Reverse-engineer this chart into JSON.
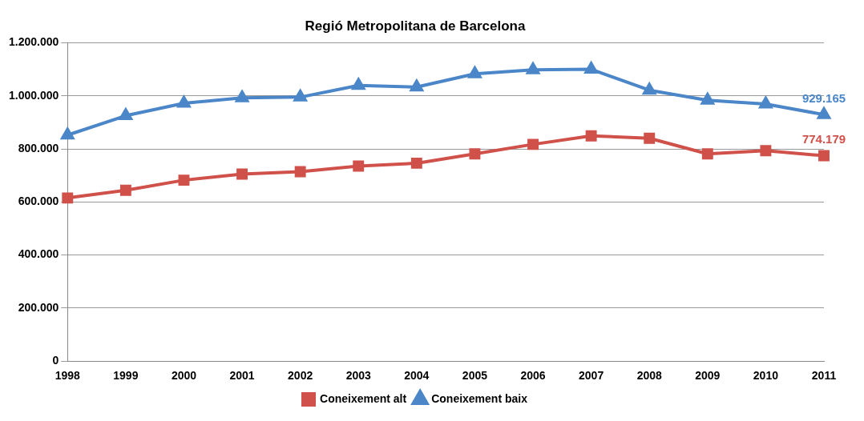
{
  "chart_data": {
    "type": "line",
    "title": "Regió Metropolitana de Barcelona",
    "categories": [
      "1998",
      "1999",
      "2000",
      "2001",
      "2002",
      "2003",
      "2004",
      "2005",
      "2006",
      "2007",
      "2008",
      "2009",
      "2010",
      "2011"
    ],
    "series": [
      {
        "name": "Coneixement alt",
        "color": "#d0504a",
        "marker": "square",
        "values": [
          615000,
          644000,
          682000,
          705000,
          714000,
          735000,
          746000,
          781000,
          817000,
          849000,
          840000,
          781000,
          793000,
          774179
        ],
        "value_labels": [
          null,
          null,
          null,
          null,
          null,
          null,
          null,
          null,
          null,
          null,
          null,
          null,
          null,
          "774.179"
        ]
      },
      {
        "name": "Coneixement baix",
        "color": "#4a86c8",
        "marker": "triangle",
        "values": [
          852000,
          925000,
          972000,
          992000,
          995000,
          1039000,
          1033000,
          1083000,
          1098000,
          1100000,
          1021000,
          983000,
          969000,
          929165
        ],
        "value_labels": [
          null,
          null,
          null,
          null,
          null,
          null,
          null,
          null,
          null,
          null,
          null,
          null,
          null,
          "929.165"
        ]
      }
    ],
    "ylim": [
      0,
      1200000
    ],
    "yticks": [
      {
        "value": 0,
        "label": "0"
      },
      {
        "value": 200000,
        "label": "200.000"
      },
      {
        "value": 400000,
        "label": "400.000"
      },
      {
        "value": 600000,
        "label": "600.000"
      },
      {
        "value": 800000,
        "label": "800.000"
      },
      {
        "value": 1000000,
        "label": "1.000.000"
      },
      {
        "value": 1200000,
        "label": "1.200.000"
      }
    ],
    "grid": "y",
    "legend": "bottom",
    "line_style": "solid"
  }
}
